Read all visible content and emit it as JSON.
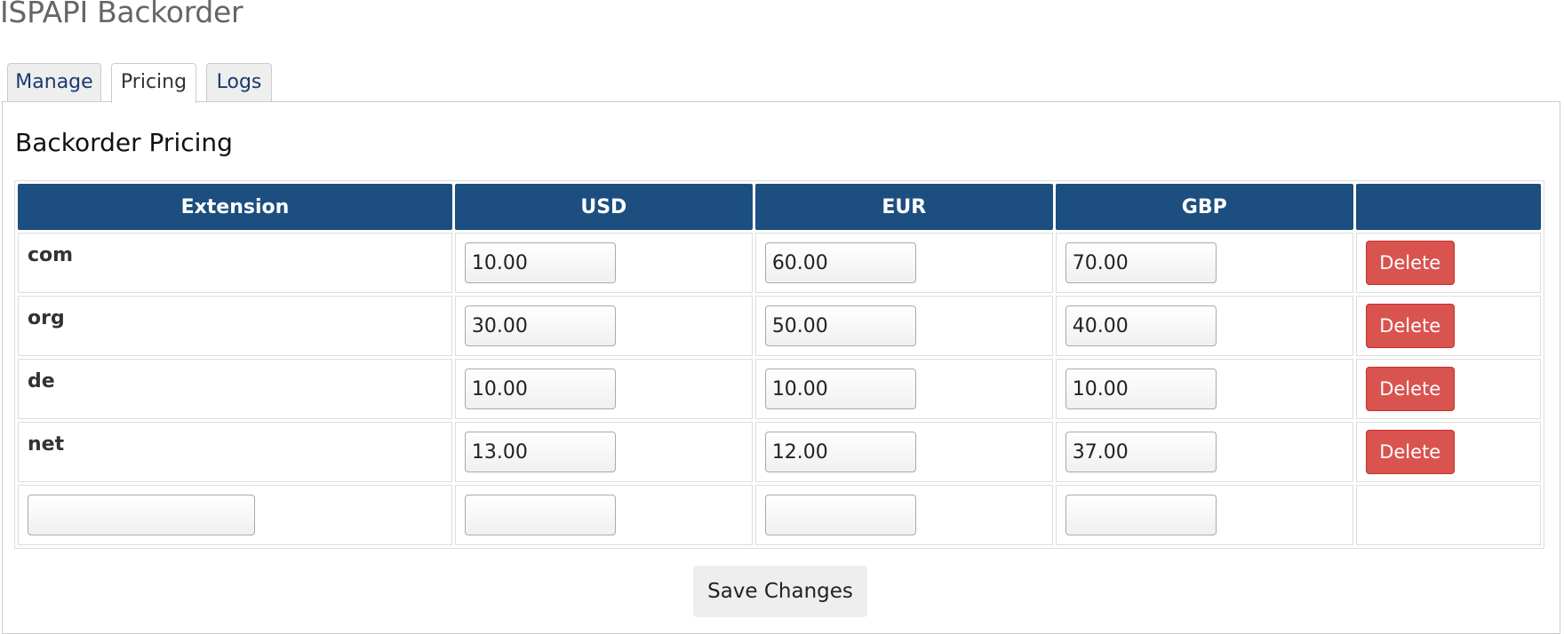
{
  "page": {
    "title": "ISPAPI Backorder"
  },
  "tabs": [
    {
      "label": "Manage"
    },
    {
      "label": "Pricing"
    },
    {
      "label": "Logs"
    }
  ],
  "active_tab": "Pricing",
  "section": {
    "title": "Backorder Pricing"
  },
  "table": {
    "headers": [
      "Extension",
      "USD",
      "EUR",
      "GBP",
      ""
    ],
    "rows": [
      {
        "ext": "com",
        "usd": "10.00",
        "eur": "60.00",
        "gbp": "70.00",
        "action": "Delete"
      },
      {
        "ext": "org",
        "usd": "30.00",
        "eur": "50.00",
        "gbp": "40.00",
        "action": "Delete"
      },
      {
        "ext": "de",
        "usd": "10.00",
        "eur": "10.00",
        "gbp": "10.00",
        "action": "Delete"
      },
      {
        "ext": "net",
        "usd": "13.00",
        "eur": "12.00",
        "gbp": "37.00",
        "action": "Delete"
      }
    ],
    "new_row": {
      "ext": "",
      "usd": "",
      "eur": "",
      "gbp": ""
    }
  },
  "save_button": {
    "label": "Save Changes"
  },
  "colors": {
    "header_bg": "#1c4f80",
    "delete_bg": "#d9534f",
    "tab_link": "#1a3a6e"
  }
}
